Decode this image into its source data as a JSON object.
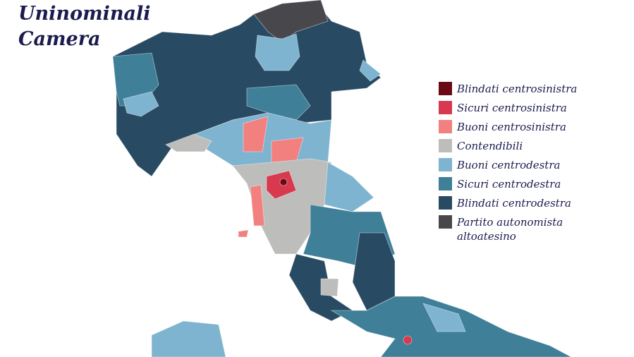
{
  "title": [
    "Uninominali",
    "Camera"
  ],
  "legend": [
    {
      "label": "Blindati centrosinistra",
      "color": "#6b0a14"
    },
    {
      "label": "Sicuri centrosinistra",
      "color": "#d8394f"
    },
    {
      "label": "Buoni centrosinistra",
      "color": "#f2807f"
    },
    {
      "label": "Contendibili",
      "color": "#bdbdbb"
    },
    {
      "label": "Buoni centrodestra",
      "color": "#7fb4d1"
    },
    {
      "label": "Sicuri centrodestra",
      "color": "#3f7f98"
    },
    {
      "label": "Blindati centrodestra",
      "color": "#284b63"
    },
    {
      "label": "Partito autonomista altoatesino",
      "color": "#48484c"
    }
  ]
}
